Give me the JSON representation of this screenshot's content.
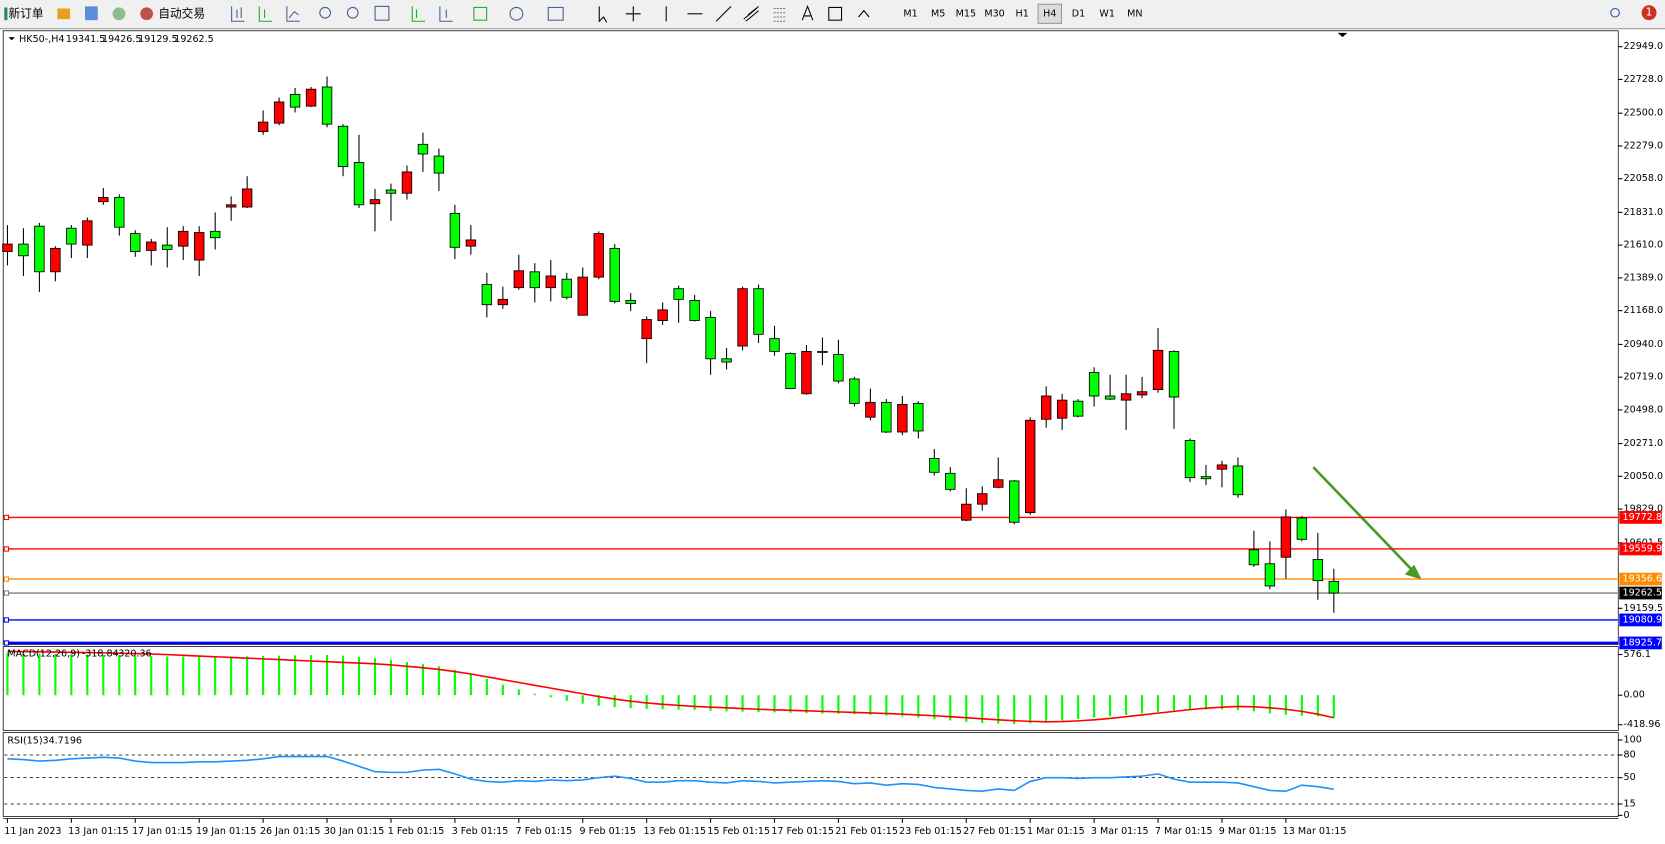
{
  "toolbar": {
    "new_order": "新订单",
    "auto_trading": "自动交易",
    "timeframes": [
      "M1",
      "M5",
      "M15",
      "M30",
      "H1",
      "H4",
      "D1",
      "W1",
      "MN"
    ],
    "active_timeframe": 5,
    "notifications": "1"
  },
  "chart_data": {
    "type": "candlestick",
    "symbol": "HK50-,H4",
    "up_color": "#ff0000",
    "down_color": "#00ff00",
    "categories": [
      "11 Jan 2023",
      null,
      null,
      null,
      "13 Jan 01:15",
      null,
      null,
      null,
      "17 Jan 01:15",
      null,
      null,
      null,
      "19 Jan 01:15",
      null,
      null,
      null,
      "26 Jan 01:15",
      null,
      null,
      null,
      "30 Jan 01:15",
      null,
      null,
      null,
      "1 Feb 01:15",
      null,
      null,
      null,
      "3 Feb 01:15",
      null,
      null,
      null,
      "7 Feb 01:15",
      null,
      null,
      null,
      "9 Feb 01:15",
      null,
      null,
      null,
      "13 Feb 01:15",
      null,
      null,
      null,
      "15 Feb 01:15",
      null,
      null,
      null,
      "17 Feb 01:15",
      null,
      null,
      null,
      "21 Feb 01:15",
      null,
      null,
      null,
      "23 Feb 01:15",
      null,
      null,
      null,
      "27 Feb 01:15",
      null,
      null,
      null,
      "1 Mar 01:15",
      null,
      null,
      null,
      "3 Mar 01:15",
      null,
      null,
      null,
      "7 Mar 01:15",
      null,
      null,
      null,
      "9 Mar 01:15",
      null,
      null,
      null,
      "13 Mar 01:15",
      null,
      null,
      null
    ],
    "open": [
      21567,
      21617,
      21738,
      21430,
      21724,
      21610,
      21903,
      21932,
      21688,
      21574,
      21610,
      21603,
      21509,
      21703,
      21867,
      21867,
      22376,
      22433,
      22627,
      22548,
      22677,
      22412,
      22168,
      21889,
      21982,
      21960,
      22290,
      22211,
      21824,
      21603,
      21344,
      21208,
      21323,
      21430,
      21323,
      21380,
      21137,
      21394,
      21588,
      21237,
      20979,
      21101,
      21316,
      21237,
      21122,
      20843,
      20929,
      21316,
      20979,
      20879,
      20607,
      20893,
      20872,
      20707,
      20449,
      20549,
      20349,
      20542,
      20170,
      20070,
      19754,
      19862,
      19976,
      20019,
      19805,
      20435,
      20442,
      20557,
      20750,
      20592,
      20564,
      20599,
      20635,
      20893,
      20292,
      20048,
      20098,
      20120,
      19554,
      19460,
      19504,
      19769,
      19489,
      19341.5
    ],
    "high": [
      21745,
      21724,
      21760,
      21603,
      21745,
      21796,
      21996,
      21953,
      21710,
      21652,
      21731,
      21738,
      21738,
      21831,
      21939,
      22075,
      22519,
      22605,
      22670,
      22677,
      22748,
      22426,
      22354,
      21989,
      22025,
      22147,
      22369,
      22261,
      21882,
      21745,
      21423,
      21330,
      21545,
      21488,
      21509,
      21423,
      21459,
      21703,
      21617,
      21287,
      21129,
      21223,
      21337,
      21273,
      21165,
      20915,
      21330,
      21344,
      21065,
      20886,
      20936,
      20986,
      20972,
      20721,
      20642,
      20571,
      20592,
      20557,
      20234,
      20112,
      19969,
      19983,
      20177,
      20025,
      20449,
      20657,
      20607,
      20571,
      20786,
      20735,
      20735,
      20721,
      21051,
      20900,
      20306,
      20127,
      20155,
      20177,
      19683,
      19611,
      19826,
      19783,
      19668,
      19426.5
    ],
    "low": [
      21473,
      21402,
      21294,
      21366,
      21523,
      21523,
      21882,
      21674,
      21531,
      21473,
      21459,
      21509,
      21402,
      21581,
      21774,
      21860,
      22354,
      22419,
      22505,
      22541,
      22405,
      22075,
      21860,
      21703,
      21774,
      21917,
      22104,
      21975,
      21516,
      21545,
      21122,
      21180,
      21309,
      21223,
      21230,
      21244,
      21137,
      21380,
      21216,
      21165,
      20814,
      21072,
      21086,
      21094,
      20735,
      20771,
      20900,
      20950,
      20864,
      20638,
      20600,
      20800,
      20678,
      20521,
      20428,
      20342,
      20327,
      20306,
      20055,
      19948,
      19747,
      19819,
      19969,
      19726,
      19790,
      20378,
      20363,
      20449,
      20521,
      20564,
      20363,
      20578,
      20614,
      20370,
      20012,
      19991,
      19976,
      19905,
      19439,
      19289,
      19360,
      19611,
      19217,
      19129.5
    ],
    "close": [
      21617,
      21538,
      21430,
      21588,
      21617,
      21774,
      21932,
      21731,
      21567,
      21631,
      21581,
      21703,
      21695,
      21660,
      21882,
      21989,
      22440,
      22576,
      22541,
      22662,
      22426,
      22140,
      21882,
      21917,
      21960,
      22104,
      22225,
      22096,
      21595,
      21645,
      21208,
      21244,
      21437,
      21323,
      21402,
      21258,
      21394,
      21688,
      21230,
      21216,
      21108,
      21173,
      21244,
      21101,
      20843,
      20821,
      21316,
      21008,
      20893,
      20642,
      20893,
      20886,
      20693,
      20542,
      20549,
      20349,
      20535,
      20356,
      20077,
      19962,
      19862,
      19933,
      20027,
      19740,
      20428,
      20592,
      20564,
      20456,
      20592,
      20571,
      20607,
      20621,
      20900,
      20585,
      20041,
      20034,
      20127,
      19926,
      19453,
      19310,
      19776,
      19625,
      19346,
      19262.5
    ],
    "ylim": [
      18923,
      23049
    ],
    "yticks": [
      {
        "value": 22949,
        "label": "22949.0"
      },
      {
        "value": 22728,
        "label": "22728.0"
      },
      {
        "value": 22500,
        "label": "22500.0"
      },
      {
        "value": 22279,
        "label": "22279.0"
      },
      {
        "value": 22058,
        "label": "22058.0"
      },
      {
        "value": 21831,
        "label": "21831.0"
      },
      {
        "value": 21610,
        "label": "21610.0"
      },
      {
        "value": 21389,
        "label": "21389.0"
      },
      {
        "value": 21168,
        "label": "21168.0"
      },
      {
        "value": 20940,
        "label": "20940.0"
      },
      {
        "value": 20719,
        "label": "20719.0"
      },
      {
        "value": 20498,
        "label": "20498.0"
      },
      {
        "value": 20271,
        "label": "20271.0"
      },
      {
        "value": 20050,
        "label": "20050.0"
      },
      {
        "value": 19829,
        "label": "19829.0"
      },
      {
        "value": 19601.5,
        "label": "19601.5"
      },
      {
        "value": 19159.5,
        "label": "19159.5"
      }
    ],
    "hlines": [
      {
        "value": 19772.8,
        "color": "#ff0000"
      },
      {
        "value": 19559.9,
        "color": "#ff0000"
      },
      {
        "value": 19356.6,
        "color": "#ff8c00"
      },
      {
        "value": 19262.5,
        "color": "#808080"
      },
      {
        "value": 19080.9,
        "color": "#0000ff"
      },
      {
        "value": 18925.7,
        "color": "#0000ff"
      }
    ],
    "macd": {
      "title": "MACD(12,26,9)",
      "hist_color": "#00ff00",
      "signal_color": "#ff0000",
      "ylim": [
        -500,
        690
      ],
      "yticks": [
        576.1,
        {
          "value": 0,
          "label": "0.00"
        },
        -418.96
      ],
      "histogram": [
        600,
        595,
        590,
        585,
        580,
        575,
        570,
        565,
        560,
        555,
        550,
        548,
        546,
        545,
        548,
        552,
        556,
        560,
        565,
        568,
        570,
        560,
        545,
        525,
        500,
        470,
        440,
        410,
        360,
        300,
        230,
        150,
        80,
        20,
        -30,
        -80,
        -120,
        -150,
        -170,
        -185,
        -195,
        -200,
        -205,
        -210,
        -220,
        -230,
        -235,
        -240,
        -245,
        -250,
        -255,
        -260,
        -265,
        -270,
        -280,
        -290,
        -300,
        -320,
        -340,
        -360,
        -380,
        -395,
        -405,
        -410,
        -400,
        -380,
        -360,
        -340,
        -320,
        -300,
        -280,
        -260,
        -240,
        -220,
        -210,
        -205,
        -200,
        -210,
        -230,
        -260,
        -280,
        -290,
        -300,
        -318.84
      ],
      "signal": [
        620,
        618,
        615,
        612,
        608,
        604,
        600,
        595,
        590,
        585,
        575,
        565,
        555,
        545,
        535,
        525,
        515,
        505,
        495,
        485,
        475,
        465,
        455,
        445,
        430,
        410,
        390,
        365,
        335,
        300,
        260,
        220,
        180,
        140,
        100,
        60,
        20,
        -20,
        -55,
        -85,
        -110,
        -130,
        -145,
        -160,
        -170,
        -180,
        -190,
        -200,
        -208,
        -215,
        -222,
        -230,
        -237,
        -245,
        -252,
        -260,
        -270,
        -280,
        -292,
        -305,
        -320,
        -335,
        -350,
        -362,
        -372,
        -378,
        -375,
        -365,
        -350,
        -330,
        -305,
        -280,
        -255,
        -230,
        -205,
        -185,
        -170,
        -160,
        -165,
        -180,
        -200,
        -230,
        -270,
        -320.36
      ]
    },
    "rsi": {
      "title": "RSI(15)",
      "color": "#1e90ff",
      "ylim": [
        0,
        100
      ],
      "yticks": [
        100,
        80,
        50,
        15,
        0
      ],
      "levels": [
        80,
        50,
        15
      ],
      "values": [
        75,
        74,
        72,
        73,
        75,
        76,
        77,
        76,
        72,
        70,
        70,
        70,
        71,
        71,
        72,
        73,
        75,
        78,
        78,
        78,
        78,
        72,
        65,
        58,
        57,
        57,
        60,
        61,
        55,
        48,
        45,
        44,
        46,
        45,
        47,
        46,
        47,
        50,
        52,
        49,
        44,
        44,
        46,
        46,
        44,
        43,
        46,
        45,
        43,
        44,
        45,
        46,
        45,
        42,
        43,
        40,
        42,
        41,
        37,
        35,
        33,
        32,
        35,
        33,
        45,
        50,
        50,
        49,
        50,
        50,
        51,
        52,
        55,
        48,
        44,
        44,
        44,
        43,
        38,
        33,
        32,
        40,
        38,
        34.7196
      ]
    }
  }
}
